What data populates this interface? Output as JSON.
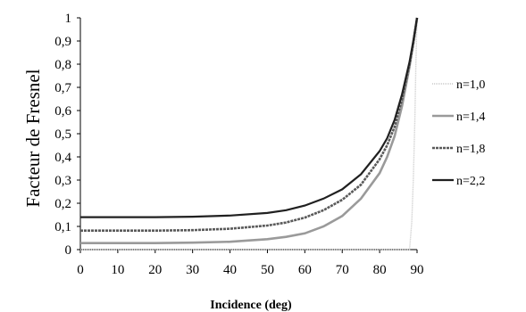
{
  "chart_data": {
    "type": "line",
    "title": "",
    "xlabel": "Incidence (deg)",
    "ylabel": "Facteur de Fresnel",
    "xlim": [
      0,
      90
    ],
    "ylim": [
      0,
      1
    ],
    "x_ticks": [
      "0",
      "10",
      "20",
      "30",
      "40",
      "50",
      "60",
      "70",
      "80",
      "90"
    ],
    "y_ticks": [
      "0",
      "0,1",
      "0,2",
      "0,3",
      "0,4",
      "0,5",
      "0,6",
      "0,7",
      "0,8",
      "0,9",
      "1"
    ],
    "grid": false,
    "legend_position": "right",
    "x": [
      0,
      10,
      20,
      30,
      40,
      50,
      55,
      60,
      65,
      70,
      75,
      80,
      82,
      84,
      86,
      88,
      89,
      90
    ],
    "series": [
      {
        "name": "n=1,0",
        "color": "#c8c8c8",
        "x": [
          0,
          10,
          20,
          30,
          40,
          50,
          60,
          70,
          80,
          88,
          88.6,
          89,
          89.4,
          89.7,
          90
        ],
        "values": [
          0,
          0,
          0,
          0,
          0,
          0,
          0,
          0,
          0,
          0,
          0.12,
          0.3,
          0.55,
          0.8,
          1.0
        ]
      },
      {
        "name": "n=1,4",
        "color": "#9a9a9a",
        "values": [
          0.028,
          0.028,
          0.028,
          0.03,
          0.034,
          0.045,
          0.055,
          0.07,
          0.1,
          0.145,
          0.22,
          0.33,
          0.4,
          0.49,
          0.62,
          0.79,
          0.89,
          1.0
        ]
      },
      {
        "name": "n=1,8",
        "color": "#5a5a5a",
        "values": [
          0.082,
          0.082,
          0.082,
          0.084,
          0.09,
          0.104,
          0.117,
          0.138,
          0.17,
          0.215,
          0.28,
          0.39,
          0.45,
          0.53,
          0.65,
          0.8,
          0.89,
          1.0
        ]
      },
      {
        "name": "n=2,2",
        "color": "#202020",
        "values": [
          0.14,
          0.14,
          0.14,
          0.142,
          0.147,
          0.158,
          0.17,
          0.19,
          0.22,
          0.26,
          0.325,
          0.425,
          0.48,
          0.56,
          0.67,
          0.81,
          0.9,
          1.0
        ]
      }
    ]
  }
}
